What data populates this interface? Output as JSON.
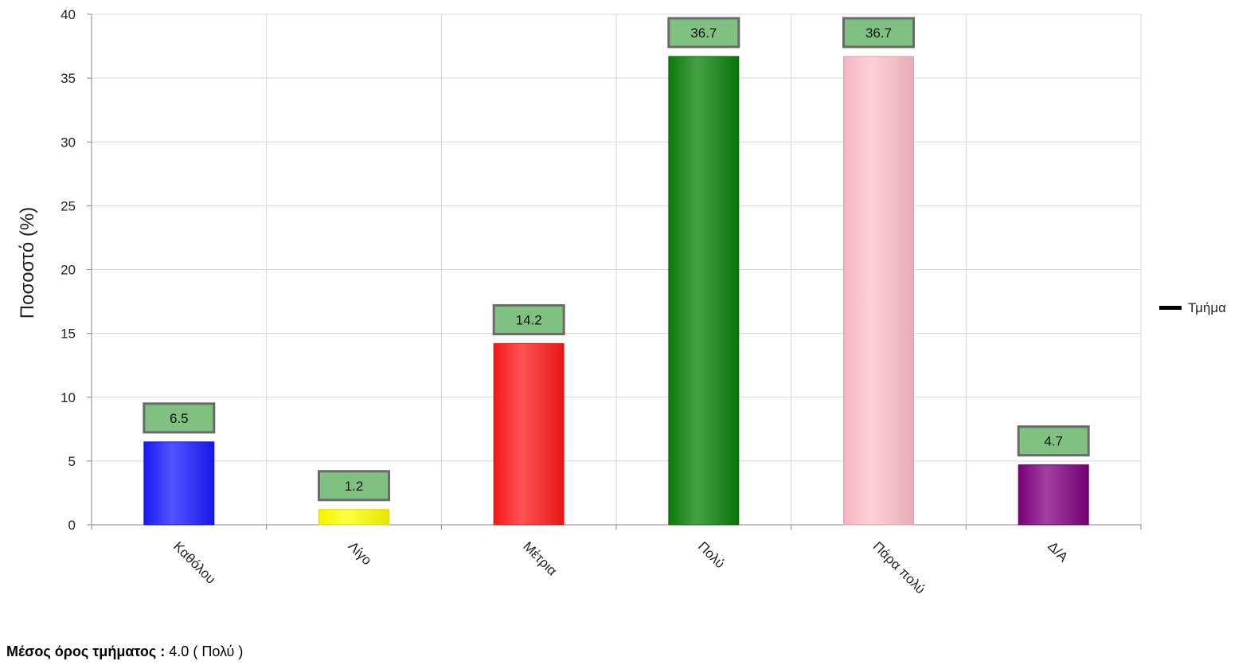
{
  "chart_data": {
    "type": "bar",
    "ylabel": "Ποσοστό (%)",
    "xlabel": "",
    "ylim": [
      0,
      40
    ],
    "yticks": [
      0,
      5,
      10,
      15,
      20,
      25,
      30,
      35,
      40
    ],
    "grid": true,
    "categories": [
      "Καθόλου",
      "Λίγο",
      "Μέτρια",
      "Πολύ",
      "Πάρα πολύ",
      "Δ/Α"
    ],
    "values": [
      6.5,
      1.2,
      14.2,
      36.7,
      36.7,
      4.7
    ],
    "value_labels": [
      "6.5",
      "1.2",
      "14.2",
      "36.7",
      "36.7",
      "4.7"
    ],
    "colors": [
      "#1a1aff",
      "#ffff00",
      "#ff1a1a",
      "#0a800a",
      "#ffc0cb",
      "#800080"
    ],
    "value_label_bg": "#80c080",
    "legend": {
      "position": "right",
      "entries": [
        "Τμήμα"
      ]
    }
  },
  "footer": {
    "label": "Μέσος όρος τμήματος :",
    "value": "4.0 ( Πολύ )"
  }
}
